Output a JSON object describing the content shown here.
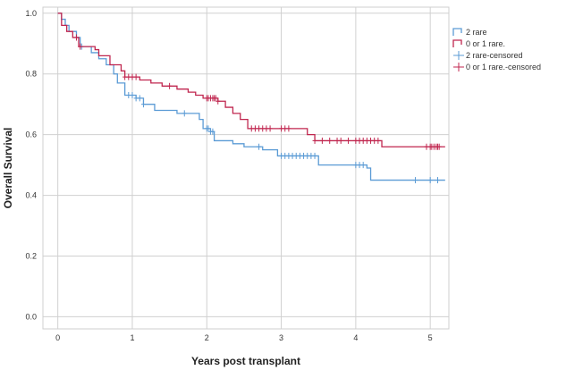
{
  "chart_data": {
    "type": "line",
    "subtype": "kaplan-meier",
    "title": "",
    "xlabel": "Years post transplant",
    "ylabel": "Overall Survival",
    "xlim": [
      -0.2,
      5.25
    ],
    "ylim": [
      -0.04,
      1.02
    ],
    "xticks": [
      0,
      1,
      2,
      3,
      4,
      5
    ],
    "yticks": [
      0.0,
      0.2,
      0.4,
      0.6,
      0.8,
      1.0
    ],
    "ytick_labels": [
      "0.0",
      "0.2",
      "0.4",
      "0.6",
      "0.8",
      "1.0"
    ],
    "grid": true,
    "legend_position": "top-right",
    "series": [
      {
        "name": "2 rare",
        "censored_label": "2 rare-censored",
        "color": "#5b9bd5",
        "steps": [
          [
            0,
            1.0
          ],
          [
            0.05,
            0.98
          ],
          [
            0.1,
            0.96
          ],
          [
            0.15,
            0.94
          ],
          [
            0.25,
            0.92
          ],
          [
            0.3,
            0.89
          ],
          [
            0.45,
            0.87
          ],
          [
            0.55,
            0.85
          ],
          [
            0.65,
            0.83
          ],
          [
            0.75,
            0.8
          ],
          [
            0.8,
            0.77
          ],
          [
            0.9,
            0.73
          ],
          [
            1.05,
            0.72
          ],
          [
            1.15,
            0.7
          ],
          [
            1.3,
            0.68
          ],
          [
            1.5,
            0.68
          ],
          [
            1.6,
            0.67
          ],
          [
            1.75,
            0.67
          ],
          [
            1.9,
            0.65
          ],
          [
            1.95,
            0.62
          ],
          [
            2.05,
            0.61
          ],
          [
            2.1,
            0.58
          ],
          [
            2.35,
            0.57
          ],
          [
            2.5,
            0.56
          ],
          [
            2.75,
            0.55
          ],
          [
            2.95,
            0.53
          ],
          [
            3.2,
            0.53
          ],
          [
            3.5,
            0.5
          ],
          [
            4.15,
            0.49
          ],
          [
            4.2,
            0.45
          ],
          [
            5.2,
            0.45
          ]
        ],
        "censored": [
          0.25,
          0.32,
          0.95,
          1.0,
          1.05,
          1.1,
          1.15,
          1.7,
          2.0,
          2.02,
          2.05,
          2.08,
          2.7,
          3.0,
          3.05,
          3.1,
          3.15,
          3.2,
          3.25,
          3.3,
          3.35,
          3.4,
          3.45,
          4.0,
          4.05,
          4.1,
          4.8,
          5.0,
          5.1
        ]
      },
      {
        "name": "0 or 1 rare.",
        "censored_label": "0 or 1 rare.-censored",
        "color": "#c0264f",
        "steps": [
          [
            0,
            1.0
          ],
          [
            0.05,
            0.96
          ],
          [
            0.12,
            0.94
          ],
          [
            0.2,
            0.92
          ],
          [
            0.28,
            0.89
          ],
          [
            0.5,
            0.88
          ],
          [
            0.55,
            0.86
          ],
          [
            0.7,
            0.83
          ],
          [
            0.85,
            0.81
          ],
          [
            0.9,
            0.79
          ],
          [
            1.1,
            0.78
          ],
          [
            1.25,
            0.77
          ],
          [
            1.4,
            0.76
          ],
          [
            1.6,
            0.75
          ],
          [
            1.75,
            0.74
          ],
          [
            1.85,
            0.73
          ],
          [
            1.95,
            0.72
          ],
          [
            2.15,
            0.71
          ],
          [
            2.25,
            0.69
          ],
          [
            2.35,
            0.67
          ],
          [
            2.45,
            0.65
          ],
          [
            2.55,
            0.62
          ],
          [
            2.85,
            0.62
          ],
          [
            3.35,
            0.6
          ],
          [
            3.45,
            0.58
          ],
          [
            4.1,
            0.58
          ],
          [
            4.35,
            0.56
          ],
          [
            5.2,
            0.56
          ]
        ],
        "censored": [
          0.25,
          0.3,
          0.9,
          0.95,
          1.0,
          1.05,
          1.5,
          2.0,
          2.02,
          2.05,
          2.08,
          2.1,
          2.12,
          2.15,
          2.6,
          2.65,
          2.7,
          2.75,
          2.8,
          2.85,
          3.0,
          3.05,
          3.1,
          3.45,
          3.55,
          3.65,
          3.75,
          3.8,
          3.9,
          4.0,
          4.05,
          4.1,
          4.15,
          4.2,
          4.25,
          4.3,
          4.95,
          5.0,
          5.02,
          5.05,
          5.08,
          5.1,
          5.12
        ]
      }
    ]
  }
}
